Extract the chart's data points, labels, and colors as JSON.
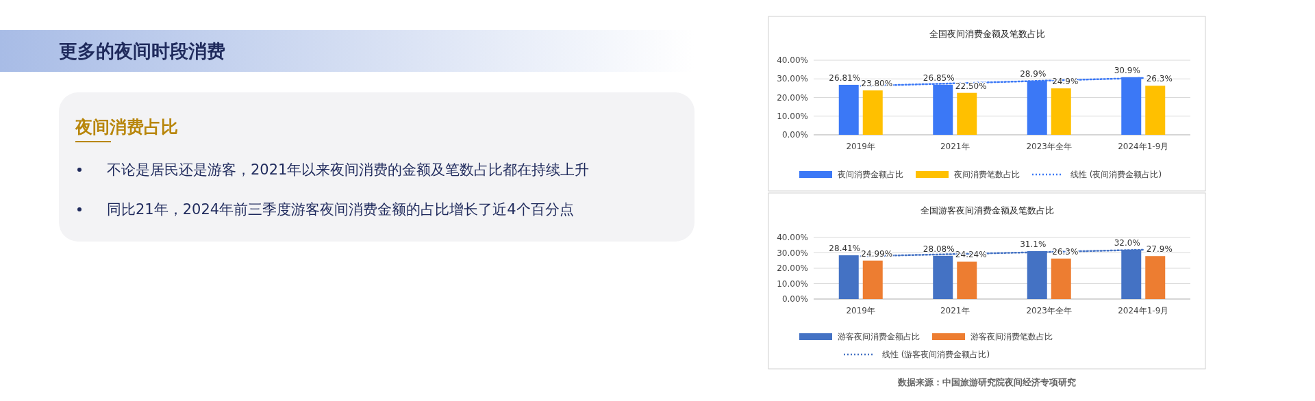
{
  "chart_data": [
    {
      "type": "other",
      "title": "更多的夜间时段消费",
      "subtitle": "夜间消费占比",
      "annotations": [
        "不论是居民还是游客，2021年以来夜间消费的金额及笔数占比都在持续上升",
        "同比21年，2024年前三季度游客夜间消费金额的占比增长了近4个百分点"
      ]
    },
    {
      "type": "bar",
      "title": "全国夜间消费金额及笔数占比",
      "categories": [
        "2019年",
        "2021年",
        "2023年全年",
        "2024年1-9月"
      ],
      "ylim": [
        0,
        40
      ],
      "yticks": [
        {
          "value": 0,
          "label": "0.00%"
        },
        {
          "value": 10,
          "label": "10.00%"
        },
        {
          "value": 20,
          "label": "20.00%"
        },
        {
          "value": 30,
          "label": "30.00%"
        },
        {
          "value": 40,
          "label": "40.00%"
        }
      ],
      "grid": "y",
      "legend": "bottom",
      "series": [
        {
          "name": "夜间消费金额占比",
          "color": "#3b78f6",
          "values": [
            26.81,
            26.85,
            28.9,
            30.9
          ],
          "value_labels": [
            "26.81%",
            "26.85%",
            "28.9%",
            "30.9%"
          ]
        },
        {
          "name": "夜间消费笔数占比",
          "color": "#ffc000",
          "values": [
            23.8,
            22.5,
            24.9,
            26.3
          ],
          "value_labels": [
            "23.80%",
            "22.50%",
            "24.9%",
            "26.3%"
          ]
        },
        {
          "name": "线性 (夜间消费金额占比)",
          "type": "line",
          "color": "#3b78f6",
          "line_style": "dotted",
          "values": [
            26.2,
            27.6,
            29.1,
            30.5
          ]
        }
      ]
    },
    {
      "type": "bar",
      "title": "全国游客夜间消费金额及笔数占比",
      "categories": [
        "2019年",
        "2021年",
        "2023年全年",
        "2024年1-9月"
      ],
      "ylim": [
        0,
        40
      ],
      "yticks": [
        {
          "value": 0,
          "label": "0.00%"
        },
        {
          "value": 10,
          "label": "10.00%"
        },
        {
          "value": 20,
          "label": "20.00%"
        },
        {
          "value": 30,
          "label": "30.00%"
        },
        {
          "value": 40,
          "label": "40.00%"
        }
      ],
      "grid": "y",
      "legend": "bottom",
      "annotations": [
        "数据来源：中国旅游研究院夜间经济专项研究"
      ],
      "series": [
        {
          "name": "游客夜间消费金额占比",
          "color": "#4472c4",
          "values": [
            28.41,
            28.08,
            31.1,
            32.0
          ],
          "value_labels": [
            "28.41%",
            "28.08%",
            "31.1%",
            "32.0%"
          ]
        },
        {
          "name": "游客夜间消费笔数占比",
          "color": "#ed7d31",
          "values": [
            24.99,
            24.24,
            26.3,
            27.9
          ],
          "value_labels": [
            "24.99%",
            "24.24%",
            "26.3%",
            "27.9%"
          ]
        },
        {
          "name": "线性 (游客夜间消费金额占比)",
          "type": "line",
          "color": "#4472c4",
          "line_style": "dotted",
          "values": [
            27.8,
            29.2,
            30.6,
            32.0
          ]
        }
      ]
    }
  ]
}
